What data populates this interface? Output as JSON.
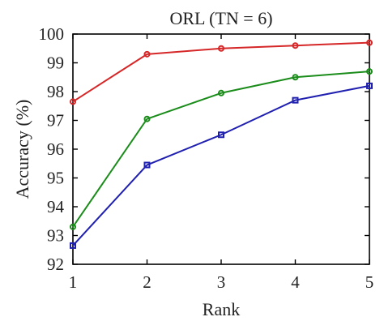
{
  "chart_data": {
    "type": "line",
    "title": "ORL (TN = 6)",
    "xlabel": "Rank",
    "ylabel": "Accuracy (%)",
    "x": [
      1,
      2,
      3,
      4,
      5
    ],
    "xlim": [
      1,
      5
    ],
    "ylim": [
      92,
      100
    ],
    "xticks": [
      "1",
      "2",
      "3",
      "4",
      "5"
    ],
    "yticks": [
      "92",
      "93",
      "94",
      "95",
      "96",
      "97",
      "98",
      "99",
      "100"
    ],
    "grid": false,
    "legend": "none",
    "series": [
      {
        "color": "#d62728",
        "marker": "circle",
        "values": [
          97.65,
          99.3,
          99.5,
          99.6,
          99.7
        ]
      },
      {
        "color": "#1a8c1a",
        "marker": "circle",
        "values": [
          93.3,
          97.05,
          97.95,
          98.5,
          98.7
        ]
      },
      {
        "color": "#2020b0",
        "marker": "square",
        "values": [
          92.65,
          95.45,
          96.5,
          97.7,
          98.2
        ]
      }
    ]
  }
}
